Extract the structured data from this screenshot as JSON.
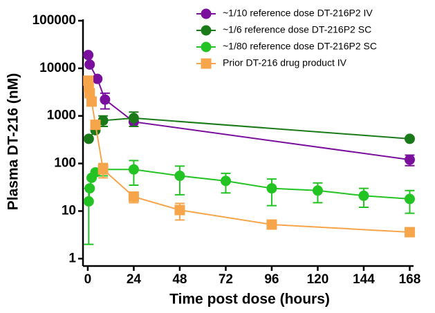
{
  "chart_data": {
    "type": "line",
    "x_label": "Time post dose (hours)",
    "y_label": "Plasma DT-216 (nM)",
    "xlim": [
      -2.5,
      170
    ],
    "xticks": [
      0,
      24,
      48,
      72,
      96,
      120,
      144,
      168
    ],
    "ylim": [
      0.7,
      100000
    ],
    "yticks": [
      1,
      10,
      100,
      1000,
      10000,
      100000
    ],
    "log_y": true,
    "legend": "top-right",
    "series": [
      {
        "name": "~1/10 reference dose DT-216P2 IV",
        "color": "#7a0f9e",
        "marker": "circle",
        "x": [
          0.25,
          1,
          5,
          9,
          24,
          168
        ],
        "values": [
          19000,
          12000,
          6000,
          2200,
          750,
          120
        ],
        "errors": [
          null,
          null,
          null,
          800,
          null,
          30
        ]
      },
      {
        "name": "~1/6 reference dose DT-216P2 SC",
        "color": "#1a7a1a",
        "marker": "circle",
        "x": [
          0.5,
          4,
          8,
          24,
          168
        ],
        "values": [
          330,
          500,
          800,
          900,
          330
        ],
        "errors": [
          null,
          null,
          200,
          300,
          null
        ]
      },
      {
        "name": "~1/80 reference dose DT-216P2 SC",
        "color": "#22c322",
        "marker": "circle",
        "x": [
          0.5,
          1,
          2,
          4,
          8,
          24,
          48,
          72,
          96,
          120,
          144,
          168
        ],
        "values": [
          16,
          30,
          50,
          65,
          75,
          75,
          55,
          43,
          30,
          27,
          21,
          18
        ],
        "errors": [
          14,
          null,
          null,
          null,
          20,
          40,
          33,
          19,
          17,
          12,
          9,
          9
        ]
      },
      {
        "name": "Prior DT-216 drug product IV",
        "color": "#f7a54a",
        "marker": "square",
        "x": [
          0.25,
          0.5,
          1,
          2,
          4,
          8,
          24,
          48,
          96,
          168
        ],
        "values": [
          5500,
          4000,
          3000,
          2000,
          650,
          75,
          20,
          10.5,
          5.2,
          3.6
        ],
        "errors": [
          null,
          null,
          null,
          null,
          null,
          25,
          5,
          4,
          null,
          null
        ]
      }
    ]
  }
}
